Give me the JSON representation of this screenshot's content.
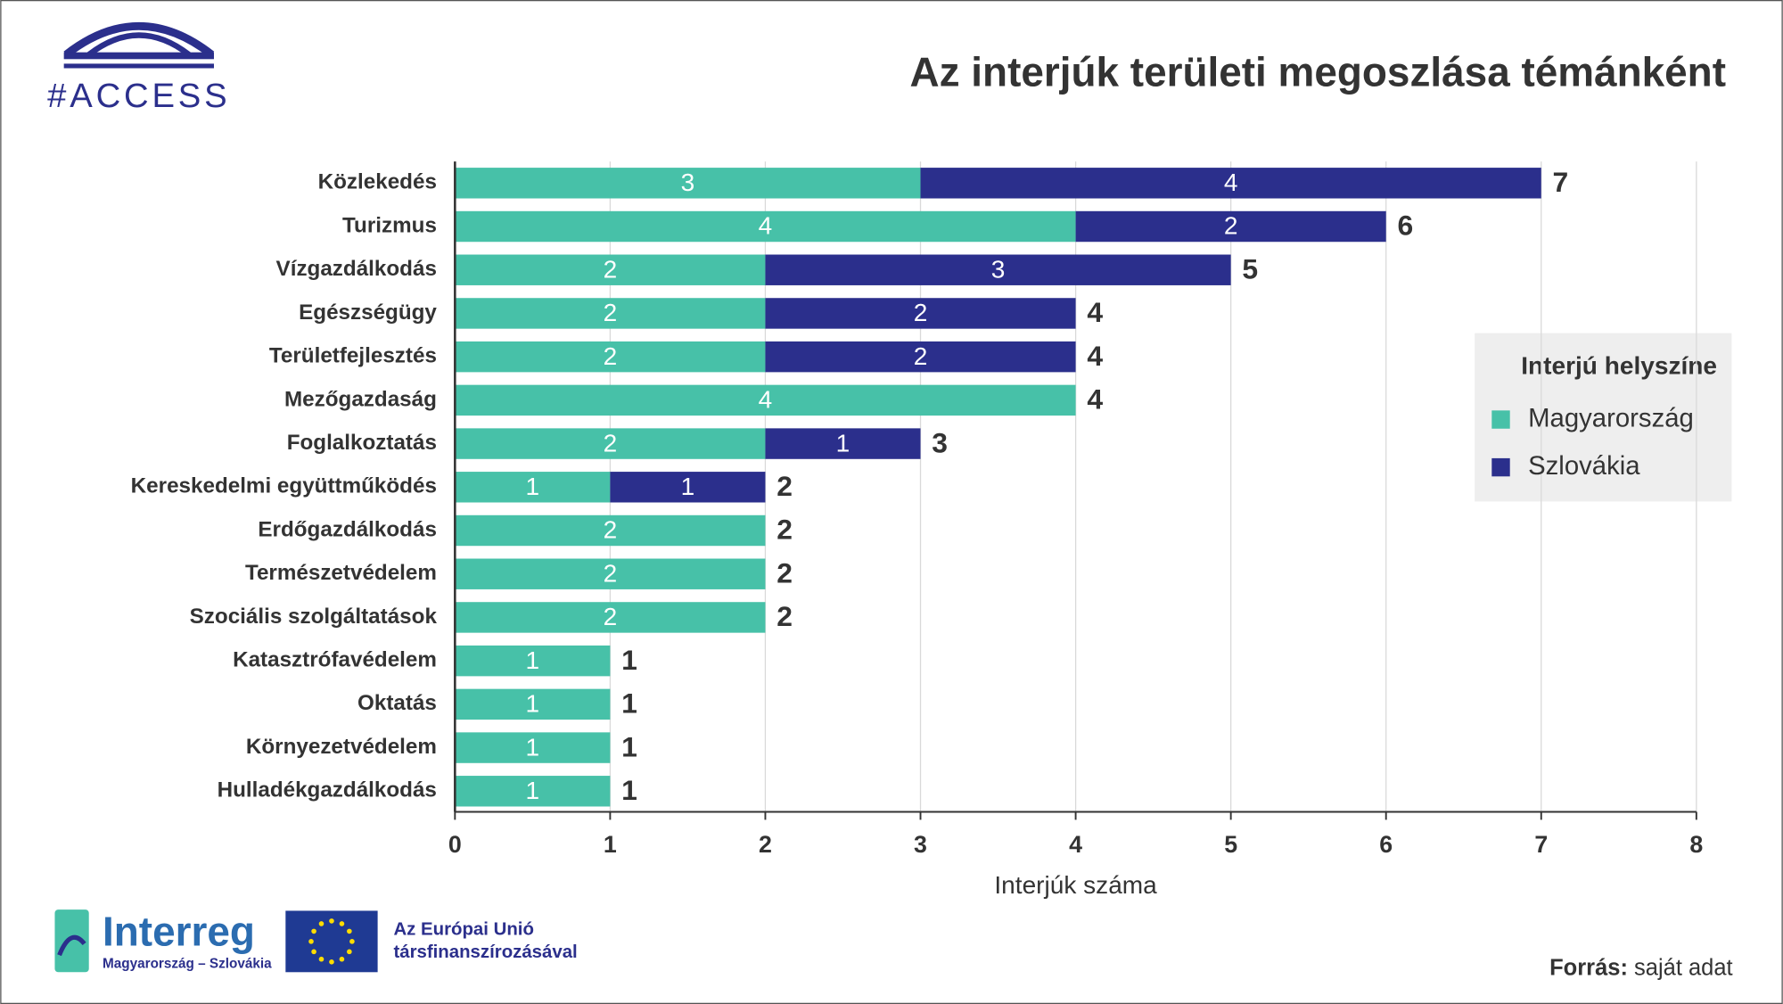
{
  "chart_data": {
    "type": "stacked-barh",
    "title": "Az interjúk területi megoszlása témánként",
    "categories": [
      "Közlekedés",
      "Turizmus",
      "Vízgazdálkodás",
      "Egészségügy",
      "Területfejlesztés",
      "Mezőgazdaság",
      "Foglalkoztatás",
      "Kereskedelmi együttműködés",
      "Erdőgazdálkodás",
      "Természetvédelem",
      "Szociális szolgáltatások",
      "Katasztrófavédelem",
      "Oktatás",
      "Környezetvédelem",
      "Hulladékgazdálkodás"
    ],
    "series": [
      {
        "name": "Magyarország",
        "color": "#47c1a8",
        "values": [
          3,
          4,
          2,
          2,
          2,
          4,
          2,
          1,
          2,
          2,
          2,
          1,
          1,
          1,
          1
        ]
      },
      {
        "name": "Szlovákia",
        "color": "#2b2f8c",
        "values": [
          4,
          2,
          3,
          2,
          2,
          null,
          1,
          1,
          null,
          null,
          null,
          null,
          null,
          null,
          null
        ]
      }
    ],
    "totals": [
      7,
      6,
      5,
      4,
      4,
      4,
      3,
      2,
      2,
      2,
      2,
      1,
      1,
      1,
      1
    ],
    "xlabel": "Interjúk száma",
    "xlim": [
      0,
      8
    ],
    "xticks": [
      0,
      1,
      2,
      3,
      4,
      5,
      6,
      7,
      8
    ],
    "grid": true,
    "legend_title": "Interjú helyszíne",
    "legend_position": "right"
  },
  "logos": {
    "access": "#ACCESS",
    "interreg": "Interreg",
    "interreg_sub": "Magyarország – Szlovákia",
    "eu_line1": "Az Európai Unió",
    "eu_line2": "társfinanszírozásával"
  },
  "source": {
    "label": "Forrás:",
    "text": "saját adat"
  }
}
